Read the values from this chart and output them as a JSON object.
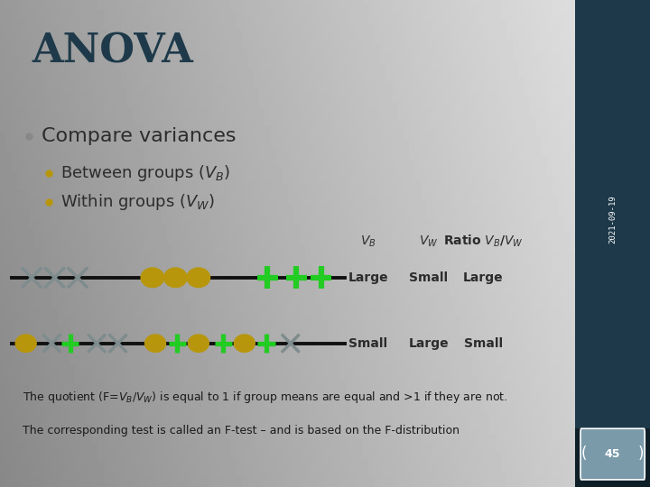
{
  "title": "ANOVA",
  "title_fontsize": 32,
  "title_color": "#1e3a4a",
  "sidebar_color": "#1e3a4a",
  "sidebar_text": "2021-09-19",
  "sidebar_text_color": "#ffffff",
  "page_num": "45",
  "page_box_color": "#7a9aaa",
  "bullet1": "Compare variances",
  "bullet1_color": "#888888",
  "bullet1_fontsize": 16,
  "bullet23_color": "#b8960c",
  "bullet23_fontsize": 13,
  "col_header_fontsize": 10,
  "row_label_fontsize": 10,
  "footer_fontsize": 9,
  "cross_color": "#7f8c8d",
  "dot_color": "#b8960c",
  "plus_color": "#22cc22",
  "line_color": "#111111",
  "row1_vb": "Large",
  "row1_vw": "Small",
  "row1_ratio": "Large",
  "row2_vb": "Small",
  "row2_vw": "Large",
  "row2_ratio": "Small",
  "footer1": "The quotient (F=V",
  "footer1b": "B",
  "footer1c": "/V",
  "footer1d": "W",
  "footer1e": ") is equal to 1 if group means are equal and >1 if they are not.",
  "footer2": "The corresponding test is called an F-test – and is based on the F-distribution"
}
